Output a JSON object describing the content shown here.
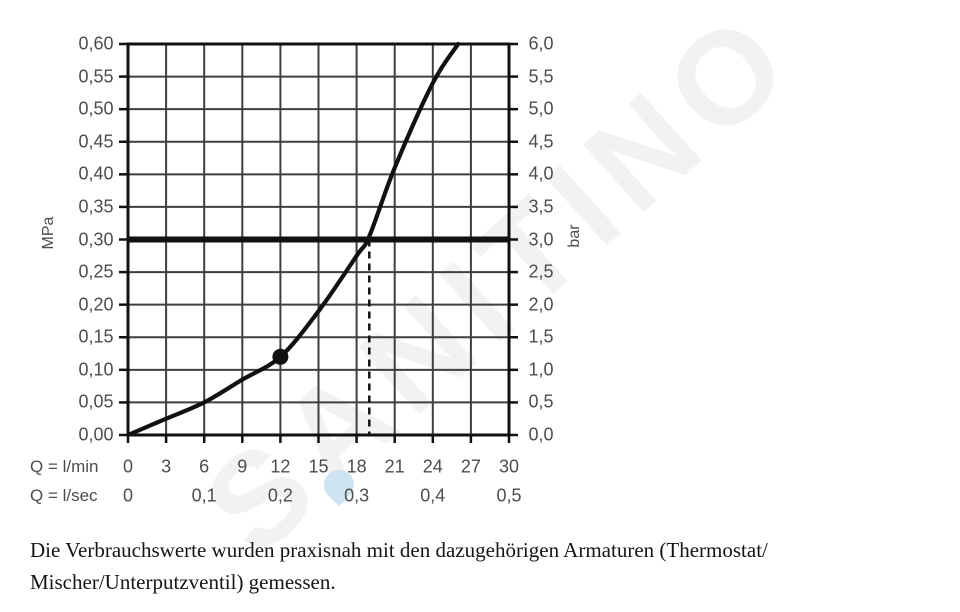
{
  "watermark": {
    "text": "SANITINO",
    "color": "#f2f2f2",
    "drop_color": "#cfe4f1"
  },
  "chart_data": {
    "type": "line",
    "title": "",
    "grid": true,
    "x_axis_primary": {
      "label": "Q = l/min",
      "tick_values": [
        0,
        3,
        6,
        9,
        12,
        15,
        18,
        21,
        24,
        27,
        30
      ],
      "tick_labels": [
        "0",
        "3",
        "6",
        "9",
        "12",
        "15",
        "18",
        "21",
        "24",
        "27",
        "30"
      ],
      "range": [
        0,
        30
      ]
    },
    "x_axis_secondary": {
      "label": "Q = l/sec",
      "tick_labels": [
        "0",
        "0,1",
        "0,2",
        "0,3",
        "0,4",
        "0,5"
      ],
      "tick_positions_lmin": [
        0,
        6,
        12,
        18,
        24,
        30
      ]
    },
    "y_axis_left": {
      "label": "MPa",
      "tick_labels": [
        "0,60",
        "0,55",
        "0,50",
        "0,45",
        "0,40",
        "0,35",
        "0,30",
        "0,25",
        "0,20",
        "0,15",
        "0,10",
        "0,05",
        "0,00"
      ],
      "range": [
        0,
        0.6
      ]
    },
    "y_axis_right": {
      "label": "bar",
      "tick_labels": [
        "6,0",
        "5,5",
        "5,0",
        "4,5",
        "4,0",
        "3,5",
        "3,0",
        "2,5",
        "2,0",
        "1,5",
        "1,0",
        "0,5",
        "0,0"
      ],
      "range": [
        0,
        6
      ]
    },
    "series": [
      {
        "name": "flow-pressure-curve",
        "points": [
          [
            0,
            0.0
          ],
          [
            3,
            0.025
          ],
          [
            6,
            0.05
          ],
          [
            9,
            0.085
          ],
          [
            12,
            0.12
          ],
          [
            15,
            0.19
          ],
          [
            18,
            0.275
          ],
          [
            19,
            0.305
          ],
          [
            21,
            0.41
          ],
          [
            24,
            0.54
          ],
          [
            26,
            0.6
          ]
        ]
      }
    ],
    "marker_point": {
      "q_lmin": 12,
      "p_mpa": 0.12
    },
    "reference_line": {
      "p_mpa": 0.3,
      "p_bar": 3.0
    },
    "dashed_guide": {
      "q_lmin": 19,
      "from_p_mpa": 0.3
    },
    "colors": {
      "line": "#111111",
      "grid": "#3f3f3f",
      "border": "#111111",
      "labels": "#4d4d4d"
    }
  },
  "caption_lines": [
    "Die Verbrauchswerte wurden praxisnah mit den dazugehörigen Armaturen (Thermostat/",
    "Mischer/Unterputzventil) gemessen."
  ]
}
